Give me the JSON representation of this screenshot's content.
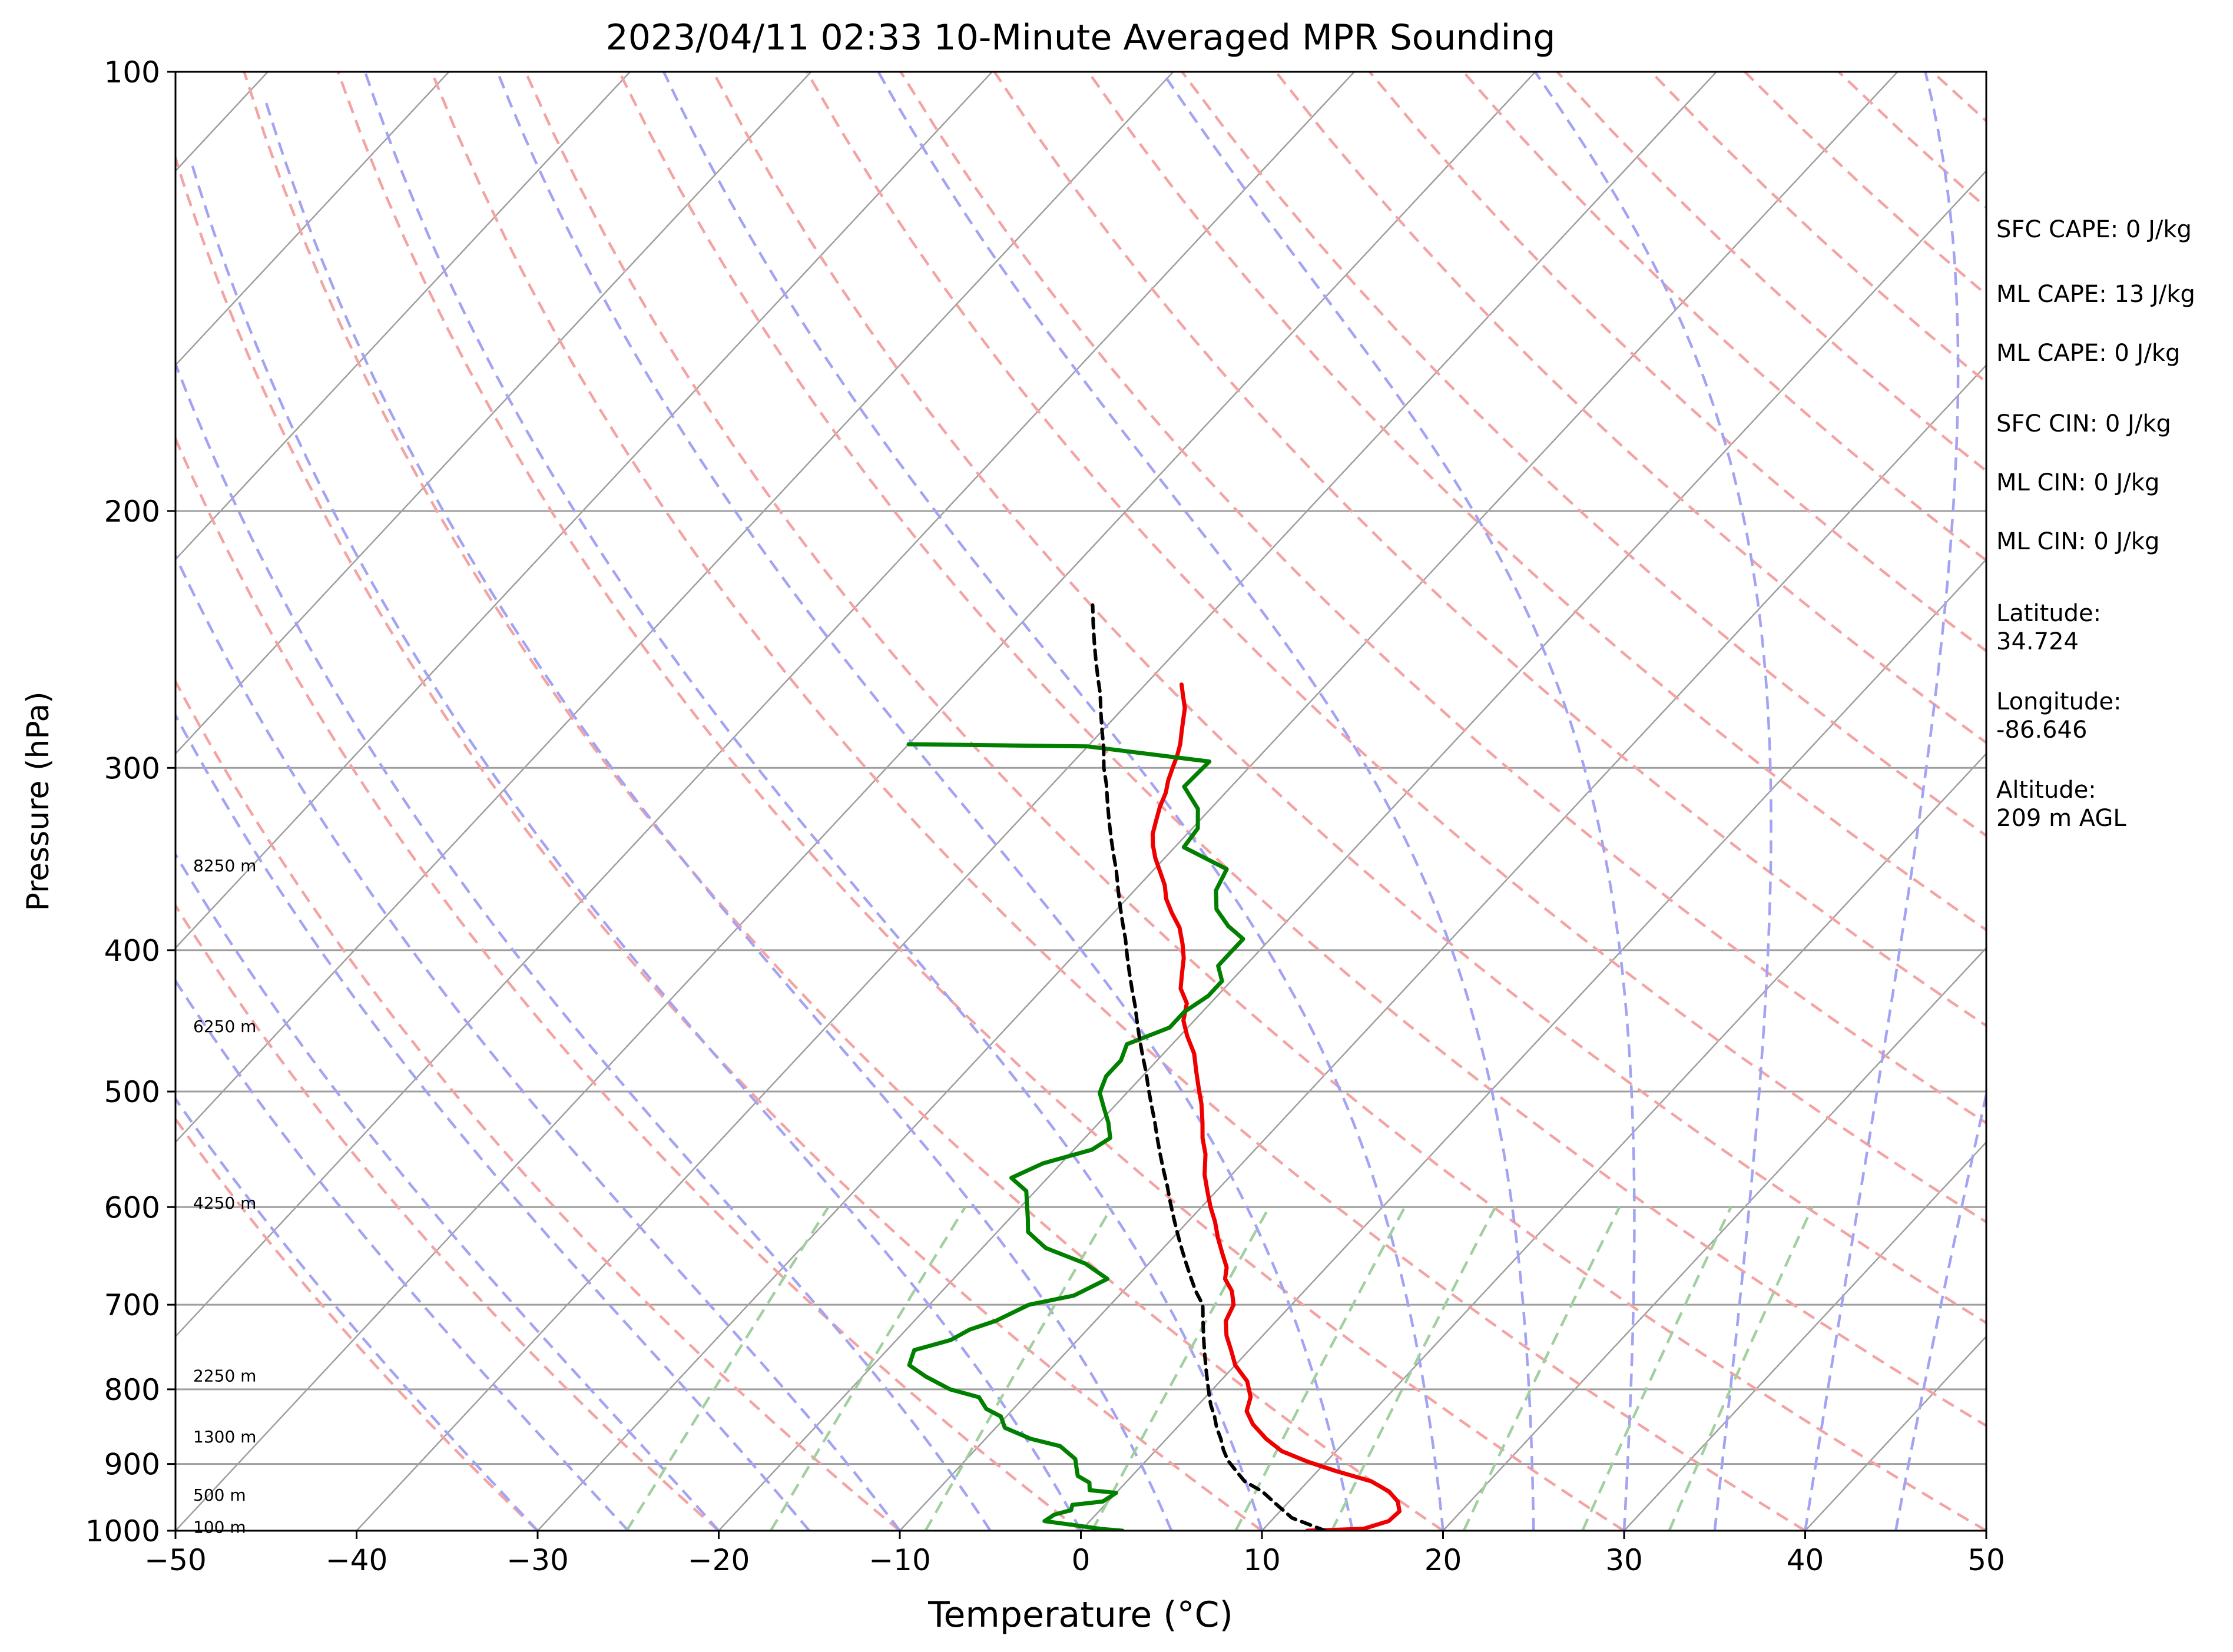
{
  "chart_data": {
    "type": "line",
    "subtype": "skew-T log-P sounding",
    "title": "2023/04/11 02:33 10-Minute Averaged MPR Sounding",
    "xlabel": "Temperature (°C)",
    "ylabel": "Pressure (hPa)",
    "xlim": [
      -50,
      50
    ],
    "ylim": [
      1000,
      100
    ],
    "y_scale": "log",
    "x_ticks": [
      -50,
      -40,
      -30,
      -20,
      -10,
      0,
      10,
      20,
      30,
      40,
      50
    ],
    "x_tick_labels": [
      "−50",
      "−40",
      "−30",
      "−20",
      "−10",
      "0",
      "10",
      "20",
      "30",
      "40",
      "50"
    ],
    "y_ticks": [
      1000,
      900,
      800,
      700,
      600,
      500,
      400,
      300,
      200,
      100
    ],
    "grid": true,
    "series": [
      {
        "color": "#ee0000",
        "points": [
          [
            12.5,
            1000
          ],
          [
            15.5,
            997
          ],
          [
            16.5,
            985
          ],
          [
            16.6,
            970
          ],
          [
            16,
            955
          ],
          [
            15,
            940
          ],
          [
            13.5,
            925
          ],
          [
            11,
            910
          ],
          [
            9,
            897
          ],
          [
            7,
            882
          ],
          [
            5.5,
            865
          ],
          [
            4,
            845
          ],
          [
            3,
            828
          ],
          [
            2.5,
            810
          ],
          [
            1.5,
            790
          ],
          [
            0,
            770
          ],
          [
            -1,
            752
          ],
          [
            -2,
            735
          ],
          [
            -2.8,
            718
          ],
          [
            -3.2,
            700
          ],
          [
            -4,
            685
          ],
          [
            -5,
            672
          ],
          [
            -5.5,
            660
          ],
          [
            -6.5,
            645
          ],
          [
            -7.5,
            630
          ],
          [
            -8.5,
            614
          ],
          [
            -9.5,
            600
          ],
          [
            -10.5,
            585
          ],
          [
            -11.5,
            570
          ],
          [
            -12.5,
            552
          ],
          [
            -13.5,
            538
          ],
          [
            -14.3,
            525
          ],
          [
            -15.3,
            510
          ],
          [
            -16.3,
            497
          ],
          [
            -17.3,
            484
          ],
          [
            -18.3,
            471
          ],
          [
            -19.6,
            458
          ],
          [
            -20.6,
            447
          ],
          [
            -21.3,
            435
          ],
          [
            -22.4,
            425
          ],
          [
            -23.1,
            415
          ],
          [
            -23.8,
            405
          ],
          [
            -24.6,
            396
          ],
          [
            -25.6,
            386
          ],
          [
            -26.8,
            377
          ],
          [
            -27.8,
            369
          ],
          [
            -28.6,
            361
          ],
          [
            -29.6,
            353
          ],
          [
            -30.5,
            346
          ],
          [
            -31.3,
            339
          ],
          [
            -31.9,
            333
          ],
          [
            -32.4,
            326
          ],
          [
            -32.9,
            319
          ],
          [
            -33.3,
            312
          ],
          [
            -33.8,
            306
          ],
          [
            -34.2,
            300
          ],
          [
            -34.6,
            294
          ],
          [
            -35,
            289
          ],
          [
            -35.5,
            284
          ],
          [
            -36,
            279
          ],
          [
            -36.6,
            273
          ],
          [
            -37.3,
            268
          ],
          [
            -38,
            263
          ]
        ]
      },
      {
        "color": "#007f00",
        "points": [
          [
            2.3,
            1000
          ],
          [
            1,
            997
          ],
          [
            -1,
            990
          ],
          [
            -2.5,
            985
          ],
          [
            -2.3,
            975
          ],
          [
            -1.6,
            968
          ],
          [
            -1.8,
            960
          ],
          [
            -0.3,
            955
          ],
          [
            0,
            942
          ],
          [
            -1.6,
            938
          ],
          [
            -2,
            927
          ],
          [
            -3,
            917
          ],
          [
            -3.5,
            905
          ],
          [
            -4,
            893
          ],
          [
            -5.5,
            875
          ],
          [
            -7.5,
            865
          ],
          [
            -9.5,
            850
          ],
          [
            -10.3,
            835
          ],
          [
            -11.5,
            825
          ],
          [
            -12.5,
            810
          ],
          [
            -14.5,
            800
          ],
          [
            -16.5,
            784
          ],
          [
            -18,
            770
          ],
          [
            -18.5,
            752
          ],
          [
            -17,
            740
          ],
          [
            -16.5,
            728
          ],
          [
            -15.5,
            718
          ],
          [
            -14.5,
            700
          ],
          [
            -12.5,
            690
          ],
          [
            -11.5,
            672
          ],
          [
            -13.5,
            656
          ],
          [
            -16.5,
            640
          ],
          [
            -18.3,
            624
          ],
          [
            -19,
            611
          ],
          [
            -19.8,
            597
          ],
          [
            -20.5,
            585
          ],
          [
            -22,
            573
          ],
          [
            -21,
            560
          ],
          [
            -19,
            548
          ],
          [
            -18.6,
            538
          ],
          [
            -19.5,
            525
          ],
          [
            -20.5,
            513
          ],
          [
            -21.5,
            501
          ],
          [
            -22,
            488
          ],
          [
            -22,
            476
          ],
          [
            -22.5,
            464
          ],
          [
            -21,
            452
          ],
          [
            -21,
            441
          ],
          [
            -20.5,
            430
          ],
          [
            -20.5,
            420
          ],
          [
            -21.5,
            410
          ],
          [
            -21.5,
            400
          ],
          [
            -21.5,
            393
          ],
          [
            -23,
            385
          ],
          [
            -24.5,
            375
          ],
          [
            -25.5,
            364
          ],
          [
            -26,
            352
          ],
          [
            -29.5,
            340
          ],
          [
            -29.7,
            330
          ],
          [
            -30.7,
            320
          ],
          [
            -32.6,
            309
          ],
          [
            -32.5,
            297
          ],
          [
            -40,
            290
          ],
          [
            -50,
            289
          ]
        ]
      },
      {
        "color": "#000000",
        "points": [
          [
            13.5,
            1000
          ],
          [
            11,
            980
          ],
          [
            9.5,
            960
          ],
          [
            8,
            940
          ],
          [
            6.5,
            925
          ],
          [
            5.5,
            910
          ],
          [
            4.5,
            895
          ],
          [
            3.7,
            880
          ],
          [
            3,
            865
          ],
          [
            2.2,
            850
          ],
          [
            1.5,
            835
          ],
          [
            0.7,
            820
          ],
          [
            0,
            805
          ],
          [
            -0.7,
            790
          ],
          [
            -1.4,
            775
          ],
          [
            -2.1,
            760
          ],
          [
            -2.8,
            745
          ],
          [
            -3.5,
            730
          ],
          [
            -4.2,
            715
          ],
          [
            -4.9,
            700
          ],
          [
            -6,
            685
          ],
          [
            -7,
            670
          ],
          [
            -8,
            655
          ],
          [
            -9,
            640
          ],
          [
            -10,
            625
          ],
          [
            -11,
            610
          ],
          [
            -12,
            595
          ],
          [
            -13,
            580
          ],
          [
            -14,
            566
          ],
          [
            -15,
            552
          ],
          [
            -16,
            538
          ],
          [
            -17,
            524
          ],
          [
            -18,
            511
          ],
          [
            -19,
            498
          ],
          [
            -20,
            485
          ],
          [
            -21,
            473
          ],
          [
            -22,
            461
          ],
          [
            -23,
            449
          ],
          [
            -24,
            437
          ],
          [
            -25,
            426
          ],
          [
            -26,
            415
          ],
          [
            -27,
            404
          ],
          [
            -28,
            393
          ],
          [
            -29,
            383
          ],
          [
            -30,
            373
          ],
          [
            -31,
            363
          ],
          [
            -32,
            353
          ],
          [
            -33,
            344
          ],
          [
            -34,
            335
          ],
          [
            -35,
            326
          ],
          [
            -36,
            317
          ],
          [
            -37,
            308
          ],
          [
            -38,
            300
          ],
          [
            -39,
            291
          ],
          [
            -40,
            283
          ],
          [
            -41,
            275
          ],
          [
            -42,
            267
          ],
          [
            -43,
            260
          ],
          [
            -44,
            253
          ],
          [
            -45,
            246
          ],
          [
            -46,
            239
          ],
          [
            -47,
            232
          ]
        ]
      }
    ],
    "height_labels": [
      "100 m",
      "500 m",
      "1300 m",
      "2250 m",
      "4250 m",
      "6250 m",
      "8250 m"
    ],
    "height_label_pressures": [
      994,
      945,
      862,
      783,
      596,
      451,
      350
    ],
    "indices": {
      "sfc_cape": "SFC CAPE: 0 J/kg",
      "ml_cape_1": "ML CAPE: 13 J/kg",
      "ml_cape_2": "ML CAPE: 0 J/kg",
      "sfc_cin": "SFC CIN: 0 J/kg",
      "ml_cin_1": "ML CIN: 0 J/kg",
      "ml_cin_2": "ML CIN: 0 J/kg",
      "latitude_label": "Latitude:",
      "latitude_value": "34.724",
      "longitude_label": "Longitude:",
      "longitude_value": "-86.646",
      "altitude_label": "Altitude:",
      "altitude_value": "209 m AGL"
    },
    "colors": {
      "isotherm": "#9e9e9e",
      "dry_adiabat": "#f4a3a3",
      "moist_adiabat": "#a3a3f4",
      "mixing_ratio": "#a0d0a0"
    }
  }
}
